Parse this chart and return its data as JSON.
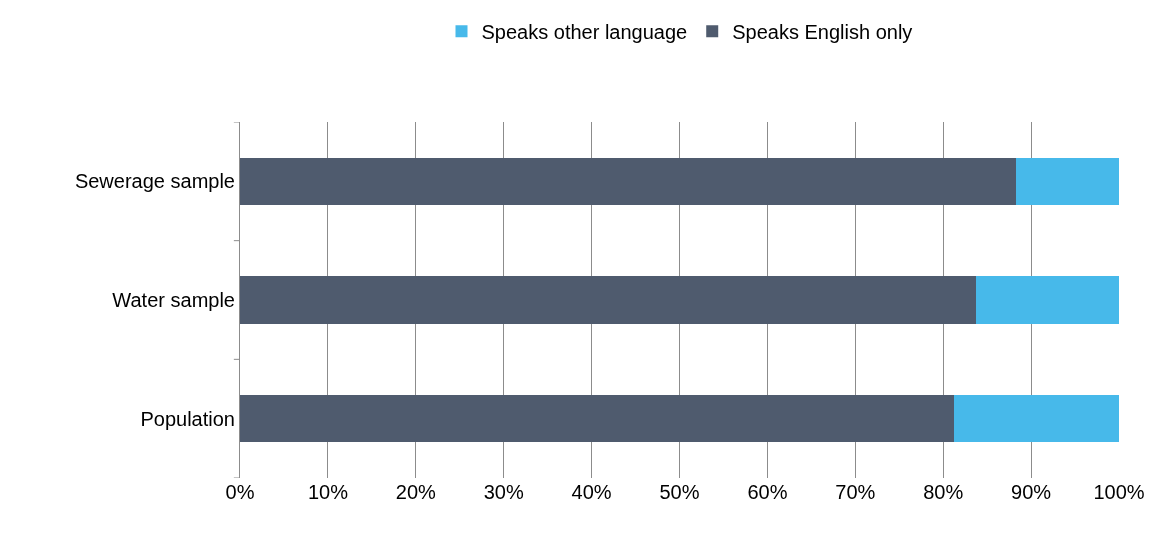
{
  "chart_data": {
    "type": "bar",
    "orientation": "horizontal",
    "stacked": true,
    "categories": [
      "Sewerage sample",
      "Water sample",
      "Population"
    ],
    "series": [
      {
        "name": "Speaks English only",
        "color": "#4f5b6e",
        "values": [
          88.3,
          83.7,
          81.2
        ]
      },
      {
        "name": "Speaks other language",
        "color": "#47b9ea",
        "values": [
          11.7,
          16.3,
          18.8
        ]
      }
    ],
    "xlim": [
      0,
      100
    ],
    "xticks": [
      {
        "value": 0,
        "label": "0%"
      },
      {
        "value": 10,
        "label": "10%"
      },
      {
        "value": 20,
        "label": "20%"
      },
      {
        "value": 30,
        "label": "30%"
      },
      {
        "value": 40,
        "label": "40%"
      },
      {
        "value": 50,
        "label": "50%"
      },
      {
        "value": 60,
        "label": "60%"
      },
      {
        "value": 70,
        "label": "70%"
      },
      {
        "value": 80,
        "label": "80%"
      },
      {
        "value": 90,
        "label": "90%"
      },
      {
        "value": 100,
        "label": "100%"
      }
    ],
    "grid": "x",
    "legend": "top"
  }
}
